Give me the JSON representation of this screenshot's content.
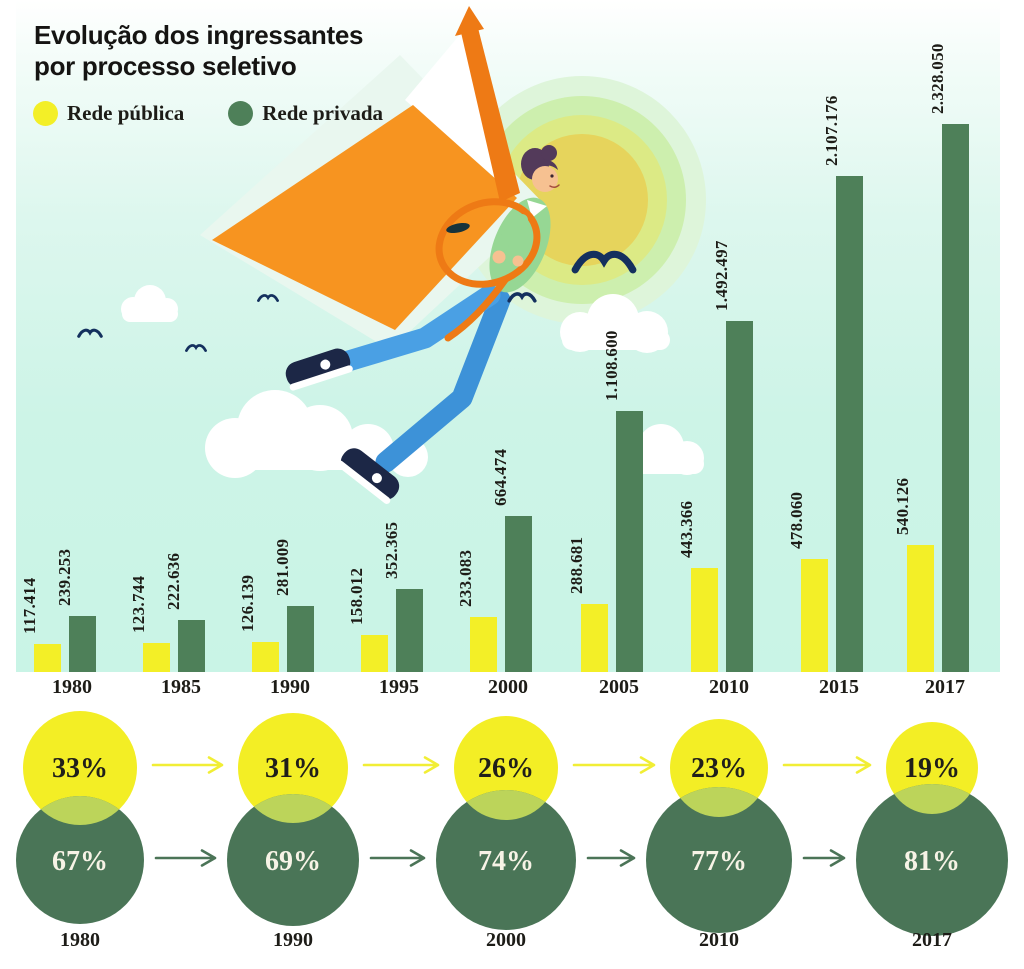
{
  "header": {
    "title_line1": "Evolução dos ingressantes",
    "title_line2": "por processo seletivo"
  },
  "legend": {
    "items": [
      {
        "label": "Rede pública",
        "color": "#f3ef27"
      },
      {
        "label": "Rede privada",
        "color": "#4e8059"
      }
    ]
  },
  "chart_data": [
    {
      "type": "bar",
      "title": "Evolução dos ingressantes por processo seletivo",
      "categories": [
        "1980",
        "1985",
        "1990",
        "1995",
        "2000",
        "2005",
        "2010",
        "2015",
        "2017"
      ],
      "series": [
        {
          "name": "Rede pública",
          "color": "#f3ef27",
          "values": [
            117414,
            123744,
            126139,
            158012,
            233083,
            288681,
            443366,
            478060,
            540126
          ],
          "labels": [
            "117.414",
            "123.744",
            "126.139",
            "158.012",
            "233.083",
            "288.681",
            "443.366",
            "478.060",
            "540.126"
          ]
        },
        {
          "name": "Rede privada",
          "color": "#4e8059",
          "values": [
            239253,
            222636,
            281009,
            352365,
            664474,
            1108600,
            1492497,
            2107176,
            2328050
          ],
          "labels": [
            "239.253",
            "222.636",
            "281.009",
            "352.365",
            "664.474",
            "1.108.600",
            "1.492.497",
            "2.107.176",
            "2.328.050"
          ]
        }
      ],
      "ylim": [
        0,
        2328050
      ],
      "grid": false,
      "legend_position": "top-left",
      "value_labels_rotated": true
    },
    {
      "type": "venn-sequence",
      "years": [
        "1980",
        "1990",
        "2000",
        "2010",
        "2017"
      ],
      "series": [
        {
          "name": "Rede pública",
          "color": "#f3ee25",
          "text_color": "#201f1a",
          "values_pct": [
            33,
            31,
            26,
            23,
            19
          ],
          "labels": [
            "33%",
            "31%",
            "26%",
            "23%",
            "19%"
          ]
        },
        {
          "name": "Rede privada",
          "color": "#4a7557",
          "text_color": "#f7f3e6",
          "values_pct": [
            67,
            69,
            74,
            77,
            81
          ],
          "labels": [
            "67%",
            "69%",
            "74%",
            "77%",
            "81%"
          ]
        }
      ],
      "overlap_color": "#bcd45a",
      "arrow_color_top": "#f1ee35",
      "arrow_color_bottom": "#4b7457"
    }
  ],
  "illustration": {
    "description": "Student flying on an open orange book used as wings, with backpack strap, glowing sun, clouds and birds",
    "elements": [
      "sun",
      "clouds",
      "birds",
      "open-book",
      "book-spine",
      "backpack-strap",
      "flying-student"
    ]
  }
}
